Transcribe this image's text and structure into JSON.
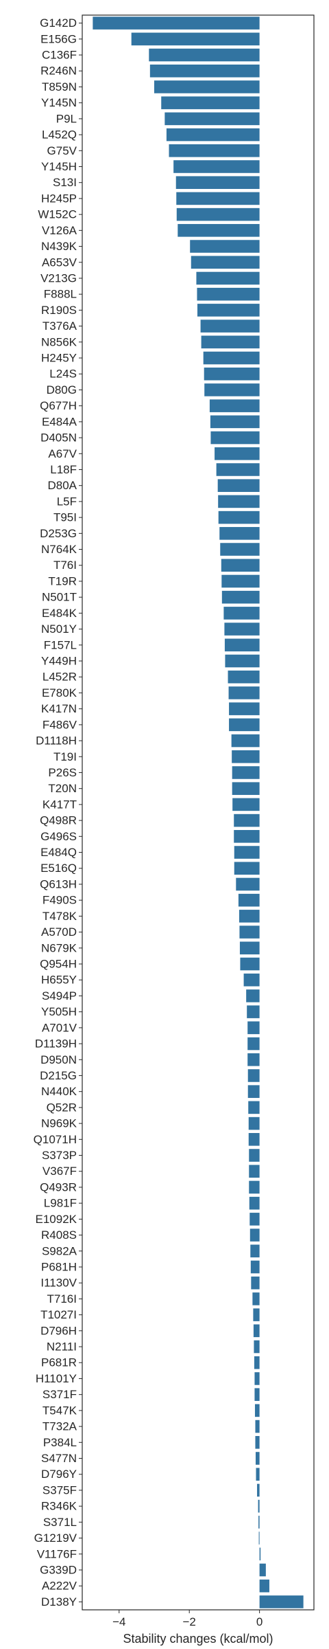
{
  "chart_data": {
    "type": "bar",
    "orientation": "horizontal",
    "title": "",
    "xlabel": "Stability changes (kcal/mol)",
    "ylabel": "",
    "xlim": [
      -5.05,
      1.55
    ],
    "xticks": [
      -4,
      -2,
      0
    ],
    "xtick_labels": [
      "−4",
      "−2",
      "0"
    ],
    "grid": false,
    "legend": "none",
    "bar_color": "#3274a1",
    "categories": [
      "G142D",
      "E156G",
      "C136F",
      "R246N",
      "T859N",
      "Y145N",
      "P9L",
      "L452Q",
      "G75V",
      "Y145H",
      "S13I",
      "H245P",
      "W152C",
      "V126A",
      "N439K",
      "A653V",
      "V213G",
      "F888L",
      "R190S",
      "T376A",
      "N856K",
      "H245Y",
      "L24S",
      "D80G",
      "Q677H",
      "E484A",
      "D405N",
      "A67V",
      "L18F",
      "D80A",
      "L5F",
      "T95I",
      "D253G",
      "N764K",
      "T76I",
      "T19R",
      "N501T",
      "E484K",
      "N501Y",
      "F157L",
      "Y449H",
      "L452R",
      "E780K",
      "K417N",
      "F486V",
      "D1118H",
      "T19I",
      "P26S",
      "T20N",
      "K417T",
      "Q498R",
      "G496S",
      "E484Q",
      "E516Q",
      "Q613H",
      "F490S",
      "T478K",
      "A570D",
      "N679K",
      "Q954H",
      "H655Y",
      "S494P",
      "Y505H",
      "A701V",
      "D1139H",
      "D950N",
      "D215G",
      "N440K",
      "Q52R",
      "N969K",
      "Q1071H",
      "S373P",
      "V367F",
      "Q493R",
      "L981F",
      "E1092K",
      "R408S",
      "S982A",
      "P681H",
      "I1130V",
      "T716I",
      "T1027I",
      "D796H",
      "N211I",
      "P681R",
      "H1101Y",
      "S371F",
      "T547K",
      "T732A",
      "P384L",
      "S477N",
      "D796Y",
      "S375F",
      "R346K",
      "S371L",
      "G1219V",
      "V1176F",
      "G339D",
      "A222V",
      "D138Y"
    ],
    "values": [
      -4.75,
      -3.65,
      -3.15,
      -3.12,
      -3.0,
      -2.8,
      -2.7,
      -2.65,
      -2.58,
      -2.45,
      -2.38,
      -2.37,
      -2.36,
      -2.33,
      -1.98,
      -1.95,
      -1.8,
      -1.78,
      -1.77,
      -1.68,
      -1.66,
      -1.6,
      -1.58,
      -1.57,
      -1.42,
      -1.4,
      -1.39,
      -1.28,
      -1.23,
      -1.19,
      -1.18,
      -1.17,
      -1.14,
      -1.12,
      -1.09,
      -1.08,
      -1.07,
      -1.02,
      -1.0,
      -0.99,
      -0.98,
      -0.9,
      -0.88,
      -0.87,
      -0.87,
      -0.8,
      -0.79,
      -0.78,
      -0.78,
      -0.77,
      -0.73,
      -0.73,
      -0.72,
      -0.72,
      -0.67,
      -0.6,
      -0.58,
      -0.57,
      -0.56,
      -0.55,
      -0.45,
      -0.38,
      -0.36,
      -0.34,
      -0.34,
      -0.34,
      -0.33,
      -0.33,
      -0.32,
      -0.31,
      -0.31,
      -0.3,
      -0.3,
      -0.3,
      -0.29,
      -0.28,
      -0.27,
      -0.26,
      -0.25,
      -0.24,
      -0.2,
      -0.18,
      -0.17,
      -0.16,
      -0.15,
      -0.14,
      -0.14,
      -0.13,
      -0.12,
      -0.12,
      -0.11,
      -0.1,
      -0.07,
      -0.04,
      -0.03,
      -0.02,
      0.03,
      0.18,
      0.28,
      1.25
    ]
  }
}
